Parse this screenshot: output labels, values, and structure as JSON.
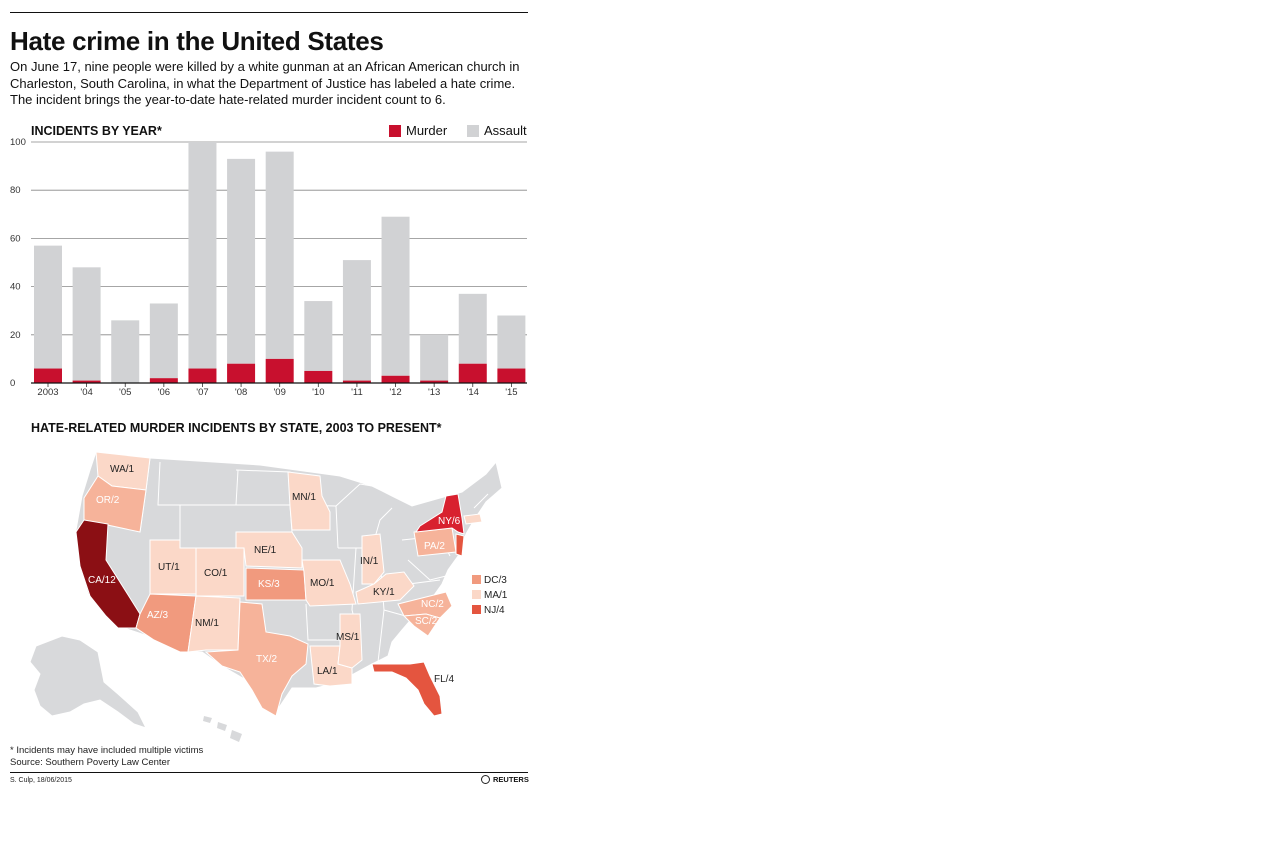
{
  "header": {
    "title": "Hate crime in the United States",
    "intro": "On June 17, nine people were killed by a white gunman at an African American church in Charleston, South Carolina, in what the Department of Justice has labeled a hate crime. The incident brings the year-to-date hate-related murder incident count to 6."
  },
  "colors": {
    "murder": "#c8102e",
    "assault": "#d1d2d4",
    "grid": "#888888",
    "state_default": "#d8d9db",
    "s1": "#fbd8c8",
    "s2": "#f6b39a",
    "s3": "#f19a7e",
    "s4": "#e4553f",
    "s6": "#d8212f",
    "s12": "#8b0f14"
  },
  "chart_data": [
    {
      "type": "bar",
      "title": "INCIDENTS BY YEAR*",
      "legend": [
        "Murder",
        "Assault"
      ],
      "legend_position": "top-right",
      "categories": [
        "2003",
        "'04",
        "'05",
        "'06",
        "'07",
        "'08",
        "'09",
        "'10",
        "'11",
        "'12",
        "'13",
        "'14",
        "'15"
      ],
      "series": [
        {
          "name": "Murder",
          "values": [
            6,
            1,
            0,
            2,
            6,
            8,
            10,
            5,
            1,
            3,
            1,
            8,
            6
          ]
        },
        {
          "name": "Assault",
          "values": [
            51,
            47,
            26,
            31,
            94,
            85,
            86,
            29,
            50,
            66,
            19,
            29,
            22
          ]
        }
      ],
      "stacked": true,
      "ylim": [
        0,
        100
      ],
      "yticks": [
        0,
        20,
        40,
        60,
        80,
        100
      ],
      "grid": true
    },
    {
      "type": "map",
      "title": "HATE-RELATED MURDER INCIDENTS BY STATE, 2003 TO PRESENT*",
      "states": [
        {
          "state": "WA",
          "label": "WA/1",
          "value": 1
        },
        {
          "state": "OR",
          "label": "OR/2",
          "value": 2
        },
        {
          "state": "CA",
          "label": "CA/12",
          "value": 12
        },
        {
          "state": "UT",
          "label": "UT/1",
          "value": 1
        },
        {
          "state": "CO",
          "label": "CO/1",
          "value": 1
        },
        {
          "state": "AZ",
          "label": "AZ/3",
          "value": 3
        },
        {
          "state": "NM",
          "label": "NM/1",
          "value": 1
        },
        {
          "state": "NE",
          "label": "NE/1",
          "value": 1
        },
        {
          "state": "KS",
          "label": "KS/3",
          "value": 3
        },
        {
          "state": "TX",
          "label": "TX/2",
          "value": 2
        },
        {
          "state": "MN",
          "label": "MN/1",
          "value": 1
        },
        {
          "state": "MO",
          "label": "MO/1",
          "value": 1
        },
        {
          "state": "LA",
          "label": "LA/1",
          "value": 1
        },
        {
          "state": "MS",
          "label": "MS/1",
          "value": 1
        },
        {
          "state": "IN",
          "label": "IN/1",
          "value": 1
        },
        {
          "state": "KY",
          "label": "KY/1",
          "value": 1
        },
        {
          "state": "FL",
          "label": "FL/4",
          "value": 4
        },
        {
          "state": "NC",
          "label": "NC/2",
          "value": 2
        },
        {
          "state": "SC",
          "label": "SC/2",
          "value": 2
        },
        {
          "state": "PA",
          "label": "PA/2",
          "value": 2
        },
        {
          "state": "NY",
          "label": "NY/6",
          "value": 6
        }
      ],
      "small_states_legend": [
        {
          "label": "DC/3",
          "value": 3
        },
        {
          "label": "MA/1",
          "value": 1
        },
        {
          "label": "NJ/4",
          "value": 4
        }
      ]
    }
  ],
  "footer": {
    "note": "* Incidents may have included multiple victims",
    "source": "Source: Southern Poverty Law Center",
    "credit": "S. Culp, 18/06/2015",
    "brand": "REUTERS"
  }
}
